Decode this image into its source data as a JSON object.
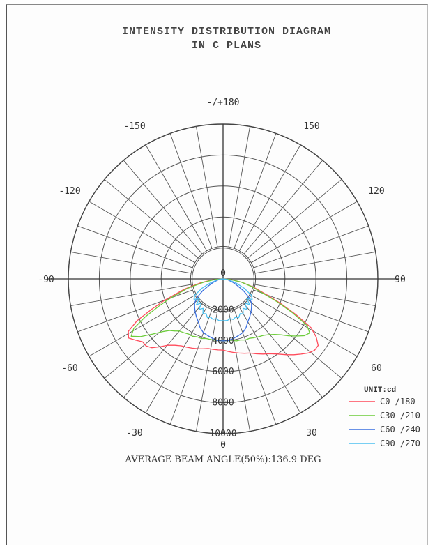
{
  "chart_data": {
    "type": "polar",
    "title": "INTENSITY DISTRIBUTION DIAGRAM",
    "subtitle": "IN C PLANS",
    "angle_labels": [
      "-/+180",
      "150",
      "120",
      "90",
      "60",
      "30",
      "0",
      "-30",
      "-60",
      "-90",
      "-120",
      "-150"
    ],
    "radial_ticks": [
      0,
      2000,
      4000,
      6000,
      8000,
      10000
    ],
    "radial_labels": [
      "0",
      "2000",
      "4000",
      "6000",
      "8000",
      "10000",
      "0"
    ],
    "r_max": 10000,
    "unit_label": "UNIT:cd",
    "footer": "AVERAGE BEAM ANGLE(50%):136.9 DEG",
    "series": [
      {
        "name": "C0  /180",
        "color": "#ff4a5a",
        "angles": [
          -90,
          -85,
          -80,
          -75,
          -70,
          -67,
          -64,
          -61,
          -58,
          -55,
          -52,
          -49,
          -46,
          -43,
          -40,
          -36,
          -32,
          -28,
          -24,
          -20,
          -16,
          -12,
          -8,
          -4,
          0,
          4,
          8,
          12,
          16,
          20,
          24,
          28,
          32,
          36,
          40,
          43,
          46,
          49,
          52,
          55,
          58,
          61,
          64,
          67,
          70,
          75,
          80,
          85,
          90
        ],
        "values": [
          0,
          700,
          1500,
          2600,
          4000,
          5000,
          6200,
          7000,
          7200,
          6900,
          6600,
          6600,
          6400,
          6000,
          5600,
          5300,
          5100,
          5000,
          4900,
          4800,
          4700,
          4600,
          4600,
          4600,
          4600,
          4700,
          4800,
          4900,
          5000,
          5100,
          5300,
          5500,
          5700,
          6000,
          6400,
          6700,
          7000,
          7300,
          7500,
          7500,
          7100,
          6500,
          5200,
          4000,
          3000,
          2000,
          1200,
          500,
          0
        ]
      },
      {
        "name": "C30 /210",
        "color": "#6ccc3a",
        "angles": [
          -90,
          -85,
          -80,
          -75,
          -70,
          -67,
          -64,
          -61,
          -58,
          -55,
          -52,
          -49,
          -46,
          -43,
          -40,
          -36,
          -32,
          -28,
          -24,
          -20,
          -16,
          -12,
          -8,
          -4,
          0,
          4,
          8,
          12,
          16,
          20,
          24,
          28,
          32,
          36,
          40,
          43,
          46,
          49,
          52,
          55,
          58,
          61,
          64,
          67,
          70,
          75,
          80,
          85,
          90
        ],
        "values": [
          0,
          600,
          1300,
          2400,
          3600,
          4500,
          5600,
          6600,
          7000,
          6500,
          5800,
          5200,
          4800,
          4600,
          4400,
          4300,
          4200,
          4200,
          4100,
          4100,
          4000,
          4000,
          4000,
          4000,
          4000,
          4000,
          4000,
          4100,
          4100,
          4200,
          4200,
          4300,
          4400,
          4500,
          4700,
          4900,
          5200,
          5600,
          6000,
          6400,
          6600,
          6200,
          5000,
          3800,
          2800,
          1900,
          1200,
          500,
          0
        ]
      },
      {
        "name": "C60 /240",
        "color": "#3a6fe0",
        "angles": [
          -90,
          -80,
          -70,
          -65,
          -60,
          -55,
          -50,
          -45,
          -40,
          -35,
          -30,
          -25,
          -20,
          -15,
          -10,
          -5,
          0,
          5,
          10,
          15,
          20,
          25,
          30,
          35,
          40,
          45,
          50,
          55,
          60,
          65,
          70,
          80,
          90
        ],
        "values": [
          0,
          300,
          700,
          1000,
          1500,
          2000,
          2400,
          2600,
          2800,
          3000,
          3200,
          3500,
          3700,
          3800,
          3900,
          4000,
          4000,
          4000,
          3900,
          3800,
          3700,
          3500,
          3200,
          3000,
          2800,
          2600,
          2400,
          2000,
          1500,
          1000,
          700,
          300,
          0
        ]
      },
      {
        "name": "C90 /270",
        "color": "#4cc0f0",
        "angles": [
          -90,
          -80,
          -72,
          -66,
          -60,
          -55,
          -50,
          -46,
          -42,
          -38,
          -34,
          -30,
          -26,
          -22,
          -18,
          -14,
          -10,
          -6,
          -2,
          0,
          2,
          6,
          10,
          14,
          18,
          22,
          26,
          30,
          34,
          38,
          42,
          46,
          50,
          55,
          60,
          66,
          72,
          80,
          90
        ],
        "values": [
          0,
          400,
          900,
          1500,
          2100,
          2300,
          2000,
          2400,
          2100,
          2500,
          2300,
          2600,
          2500,
          2700,
          2600,
          2700,
          2600,
          2700,
          2700,
          2700,
          2700,
          2700,
          2600,
          2700,
          2600,
          2700,
          2500,
          2600,
          2300,
          2500,
          2100,
          2400,
          2000,
          2300,
          2100,
          1500,
          900,
          400,
          0
        ]
      }
    ]
  }
}
